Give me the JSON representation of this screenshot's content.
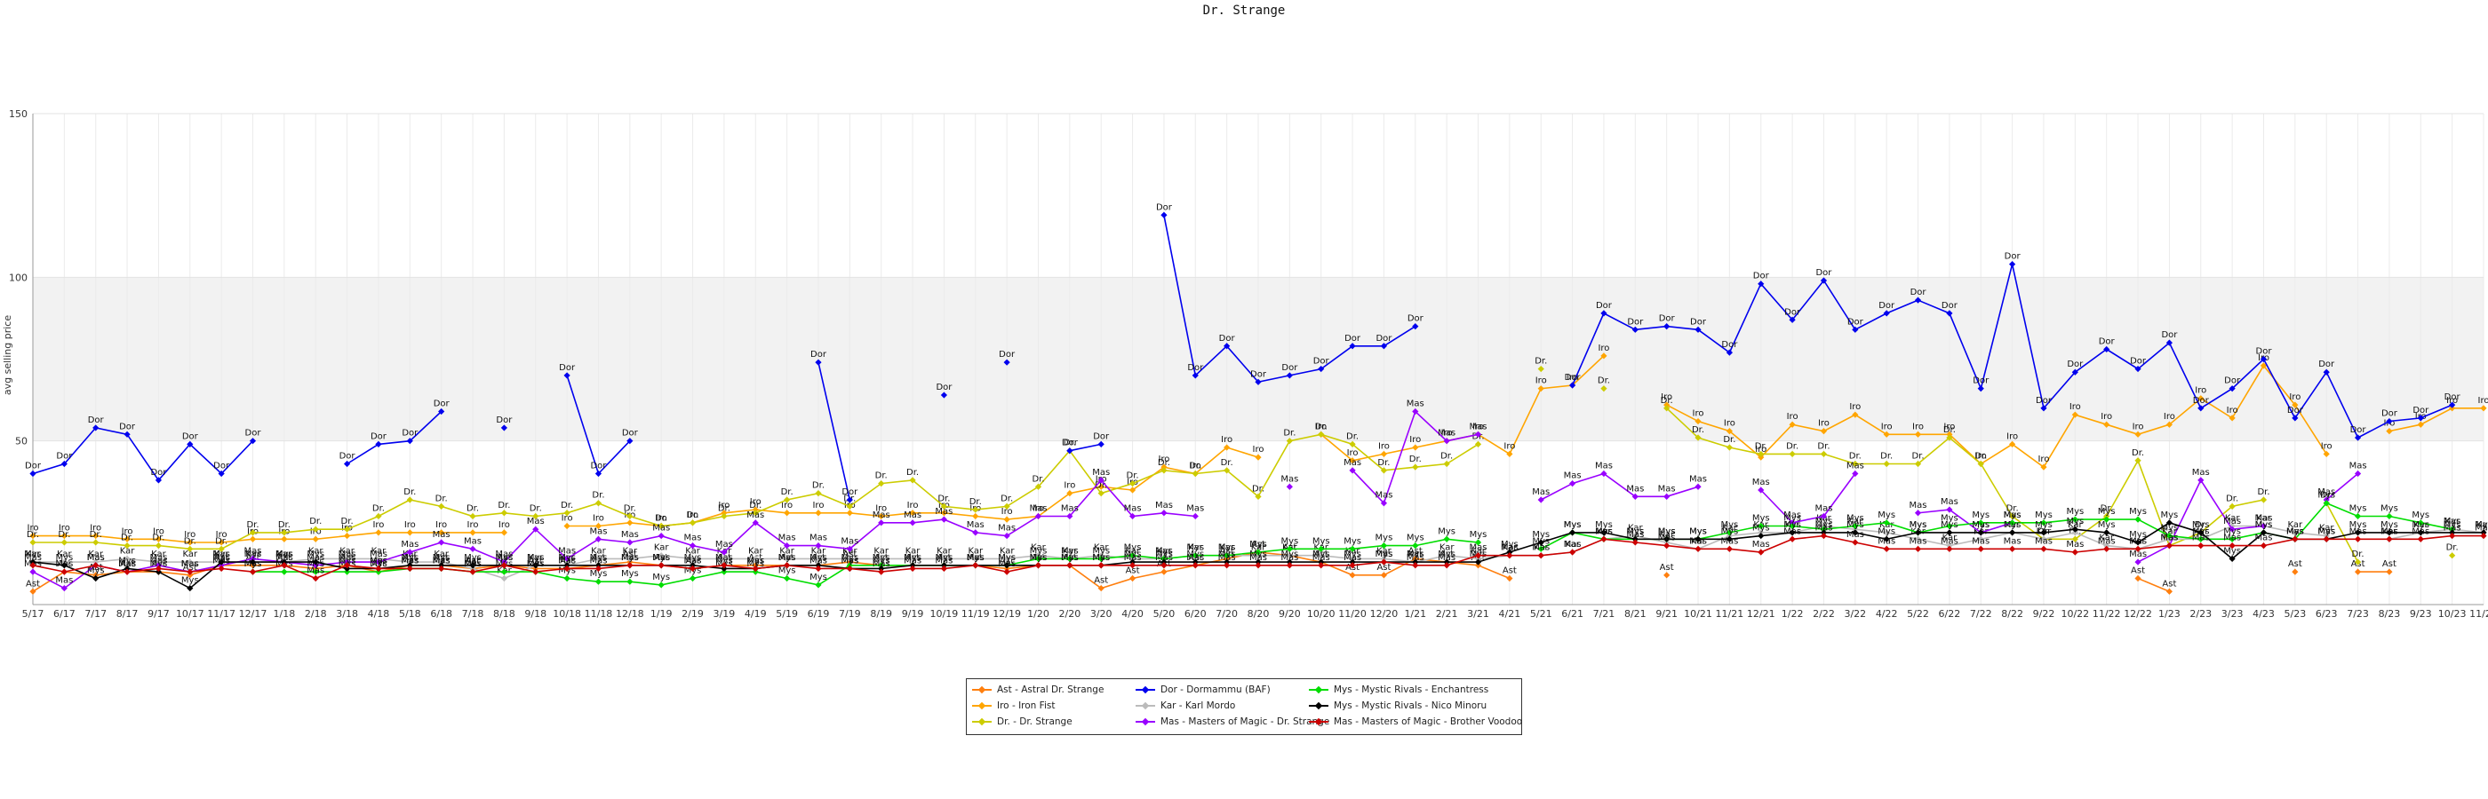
{
  "chart_data": {
    "type": "line",
    "title": "Dr. Strange",
    "ylabel": "avg selling price",
    "xlabel": "",
    "ylim": [
      0,
      150
    ],
    "yticks": [
      50,
      100,
      150
    ],
    "band": [
      50,
      100
    ],
    "grid": true,
    "legend_position": "bottom-center",
    "x": [
      "5/17",
      "6/17",
      "7/17",
      "8/17",
      "9/17",
      "10/17",
      "11/17",
      "12/17",
      "1/18",
      "2/18",
      "3/18",
      "4/18",
      "5/18",
      "6/18",
      "7/18",
      "8/18",
      "9/18",
      "10/18",
      "11/18",
      "12/18",
      "1/19",
      "2/19",
      "3/19",
      "4/19",
      "5/19",
      "6/19",
      "7/19",
      "8/19",
      "9/19",
      "10/19",
      "11/19",
      "12/19",
      "1/20",
      "2/20",
      "3/20",
      "4/20",
      "5/20",
      "6/20",
      "7/20",
      "8/20",
      "9/20",
      "10/20",
      "11/20",
      "12/20",
      "1/21",
      "2/21",
      "3/21",
      "4/21",
      "5/21",
      "6/21",
      "7/21",
      "8/21",
      "9/21",
      "10/21",
      "11/21",
      "12/21",
      "1/22",
      "2/22",
      "3/22",
      "4/22",
      "5/22",
      "6/22",
      "7/22",
      "8/22",
      "9/22",
      "10/22",
      "11/22",
      "12/22",
      "1/23",
      "2/23",
      "3/23",
      "4/23",
      "5/23",
      "6/23",
      "7/23",
      "8/23",
      "9/23",
      "10/23",
      "11/23"
    ],
    "series": [
      {
        "name": "Ast - Astral Dr. Strange",
        "short": "Ast",
        "color": "#ff7f0e",
        "values": [
          4,
          10,
          9,
          10,
          10,
          9,
          12,
          12,
          12,
          11,
          12,
          10,
          12,
          12,
          11,
          12,
          11,
          11,
          12,
          13,
          12,
          11,
          12,
          12,
          12,
          12,
          13,
          12,
          12,
          12,
          12,
          11,
          12,
          12,
          5,
          8,
          10,
          12,
          14,
          16,
          15,
          13,
          9,
          9,
          14,
          13,
          12,
          8,
          null,
          null,
          null,
          null,
          9,
          null,
          null,
          null,
          null,
          null,
          null,
          null,
          null,
          null,
          null,
          null,
          null,
          null,
          null,
          8,
          4,
          null,
          null,
          null,
          10,
          null,
          10,
          10,
          null,
          null,
          null
        ]
      },
      {
        "name": "Iro - Iron Fist",
        "short": "Iro",
        "color": "#ffa500",
        "values": [
          21,
          21,
          21,
          20,
          20,
          19,
          19,
          20,
          20,
          20,
          21,
          22,
          22,
          22,
          22,
          22,
          null,
          24,
          24,
          25,
          24,
          25,
          28,
          29,
          28,
          28,
          28,
          27,
          28,
          28,
          27,
          26,
          27,
          34,
          36,
          35,
          42,
          40,
          48,
          45,
          null,
          52,
          44,
          46,
          48,
          50,
          52,
          46,
          66,
          67,
          76,
          null,
          61,
          56,
          53,
          45,
          55,
          53,
          58,
          52,
          52,
          52,
          43,
          49,
          42,
          58,
          55,
          52,
          55,
          63,
          57,
          73,
          61,
          46,
          null,
          53,
          55,
          60,
          60
        ]
      },
      {
        "name": "Dr. - Dr. Strange",
        "short": "Dr.",
        "color": "#cccc00",
        "values": [
          19,
          19,
          19,
          18,
          18,
          17,
          17,
          22,
          22,
          23,
          23,
          27,
          32,
          30,
          27,
          28,
          27,
          28,
          31,
          27,
          24,
          25,
          27,
          28,
          32,
          34,
          30,
          37,
          38,
          30,
          29,
          30,
          36,
          47,
          34,
          37,
          41,
          40,
          41,
          33,
          50,
          52,
          49,
          41,
          42,
          43,
          49,
          null,
          72,
          null,
          66,
          null,
          60,
          51,
          48,
          46,
          46,
          46,
          43,
          43,
          43,
          51,
          43,
          27,
          20,
          20,
          27,
          44,
          18,
          22,
          30,
          32,
          null,
          31,
          13,
          null,
          null,
          15,
          null
        ]
      },
      {
        "name": "Dor - Dormammu (BAF)",
        "short": "Dor",
        "color": "#0000ee",
        "values": [
          40,
          43,
          54,
          52,
          38,
          49,
          40,
          50,
          null,
          null,
          43,
          49,
          50,
          59,
          null,
          54,
          null,
          70,
          40,
          50,
          null,
          null,
          null,
          null,
          null,
          74,
          32,
          null,
          null,
          64,
          null,
          74,
          null,
          47,
          49,
          null,
          119,
          70,
          79,
          68,
          70,
          72,
          79,
          79,
          85,
          null,
          null,
          null,
          null,
          67,
          89,
          84,
          85,
          84,
          77,
          98,
          87,
          99,
          84,
          89,
          93,
          89,
          66,
          104,
          60,
          71,
          78,
          72,
          80,
          60,
          66,
          75,
          57,
          71,
          51,
          56,
          57,
          61,
          null
        ]
      },
      {
        "name": "Kar - Karl Mordo",
        "short": "Kar",
        "color": "#bbbbbb",
        "values": [
          13,
          13,
          13,
          14,
          13,
          13,
          13,
          13,
          13,
          14,
          14,
          14,
          13,
          13,
          11,
          8,
          12,
          12,
          14,
          14,
          15,
          14,
          14,
          14,
          14,
          14,
          14,
          14,
          14,
          14,
          14,
          14,
          15,
          14,
          15,
          14,
          14,
          15,
          15,
          15,
          15,
          15,
          14,
          14,
          13,
          15,
          14,
          15,
          15,
          16,
          20,
          21,
          19,
          17,
          21,
          22,
          22,
          24,
          23,
          22,
          20,
          18,
          20,
          22,
          20,
          22,
          18,
          17,
          20,
          20,
          24,
          24,
          22,
          21,
          null,
          20,
          22,
          23,
          22
        ]
      },
      {
        "name": "Mas - Masters of Magic - Dr. Strange",
        "short": "Mas",
        "color": "#9900ff",
        "values": [
          10,
          5,
          12,
          10,
          12,
          10,
          12,
          14,
          13,
          12,
          13,
          13,
          16,
          19,
          17,
          13,
          23,
          14,
          20,
          19,
          21,
          18,
          16,
          25,
          18,
          18,
          17,
          25,
          25,
          26,
          22,
          21,
          27,
          27,
          38,
          27,
          28,
          27,
          null,
          null,
          36,
          null,
          41,
          31,
          59,
          50,
          52,
          null,
          32,
          37,
          40,
          33,
          33,
          36,
          null,
          35,
          25,
          27,
          40,
          null,
          28,
          29,
          22,
          25,
          null,
          null,
          null,
          13,
          18,
          38,
          23,
          24,
          null,
          32,
          40,
          null,
          null,
          null,
          null
        ]
      },
      {
        "name": "Mys - Mystic Rivals - Enchantress",
        "short": "Mys",
        "color": "#00dd00",
        "values": [
          null,
          null,
          null,
          null,
          null,
          null,
          null,
          10,
          10,
          10,
          10,
          10,
          11,
          11,
          10,
          10,
          10,
          8,
          7,
          7,
          6,
          8,
          10,
          10,
          8,
          6,
          12,
          12,
          12,
          12,
          12,
          12,
          14,
          14,
          14,
          15,
          14,
          15,
          15,
          16,
          17,
          17,
          17,
          18,
          18,
          20,
          19,
          null,
          17,
          22,
          20,
          20,
          20,
          20,
          22,
          24,
          24,
          23,
          24,
          25,
          22,
          24,
          25,
          25,
          25,
          26,
          26,
          26,
          21,
          20,
          20,
          22,
          20,
          31,
          27,
          27,
          25,
          23,
          null
        ]
      },
      {
        "name": "Mys - Mystic Rivals - Nico Minoru",
        "short": "Mys",
        "color": "#000000",
        "values": [
          13,
          12,
          8,
          11,
          10,
          5,
          13,
          13,
          13,
          13,
          11,
          11,
          12,
          12,
          12,
          12,
          12,
          12,
          12,
          12,
          12,
          12,
          11,
          11,
          12,
          12,
          11,
          11,
          12,
          12,
          12,
          12,
          12,
          12,
          12,
          13,
          13,
          13,
          13,
          13,
          13,
          13,
          13,
          13,
          13,
          13,
          13,
          16,
          19,
          22,
          22,
          20,
          20,
          20,
          20,
          21,
          22,
          22,
          22,
          20,
          22,
          22,
          22,
          22,
          22,
          23,
          22,
          19,
          25,
          22,
          14,
          22,
          20,
          20,
          22,
          22,
          22,
          22,
          22
        ]
      },
      {
        "name": "Mas - Masters of Magic - Brother Voodoo",
        "short": "Mas",
        "color": "#cc0000",
        "values": [
          12,
          10,
          12,
          10,
          11,
          10,
          11,
          10,
          12,
          8,
          12,
          11,
          11,
          11,
          10,
          12,
          10,
          11,
          11,
          12,
          12,
          11,
          12,
          11,
          12,
          11,
          11,
          10,
          11,
          11,
          12,
          10,
          12,
          12,
          12,
          12,
          12,
          12,
          12,
          12,
          12,
          12,
          12,
          13,
          12,
          12,
          15,
          15,
          15,
          16,
          20,
          19,
          18,
          17,
          17,
          16,
          20,
          21,
          19,
          17,
          17,
          17,
          17,
          17,
          17,
          16,
          17,
          17,
          18,
          18,
          18,
          18,
          20,
          20,
          20,
          20,
          20,
          21,
          21
        ]
      }
    ]
  }
}
